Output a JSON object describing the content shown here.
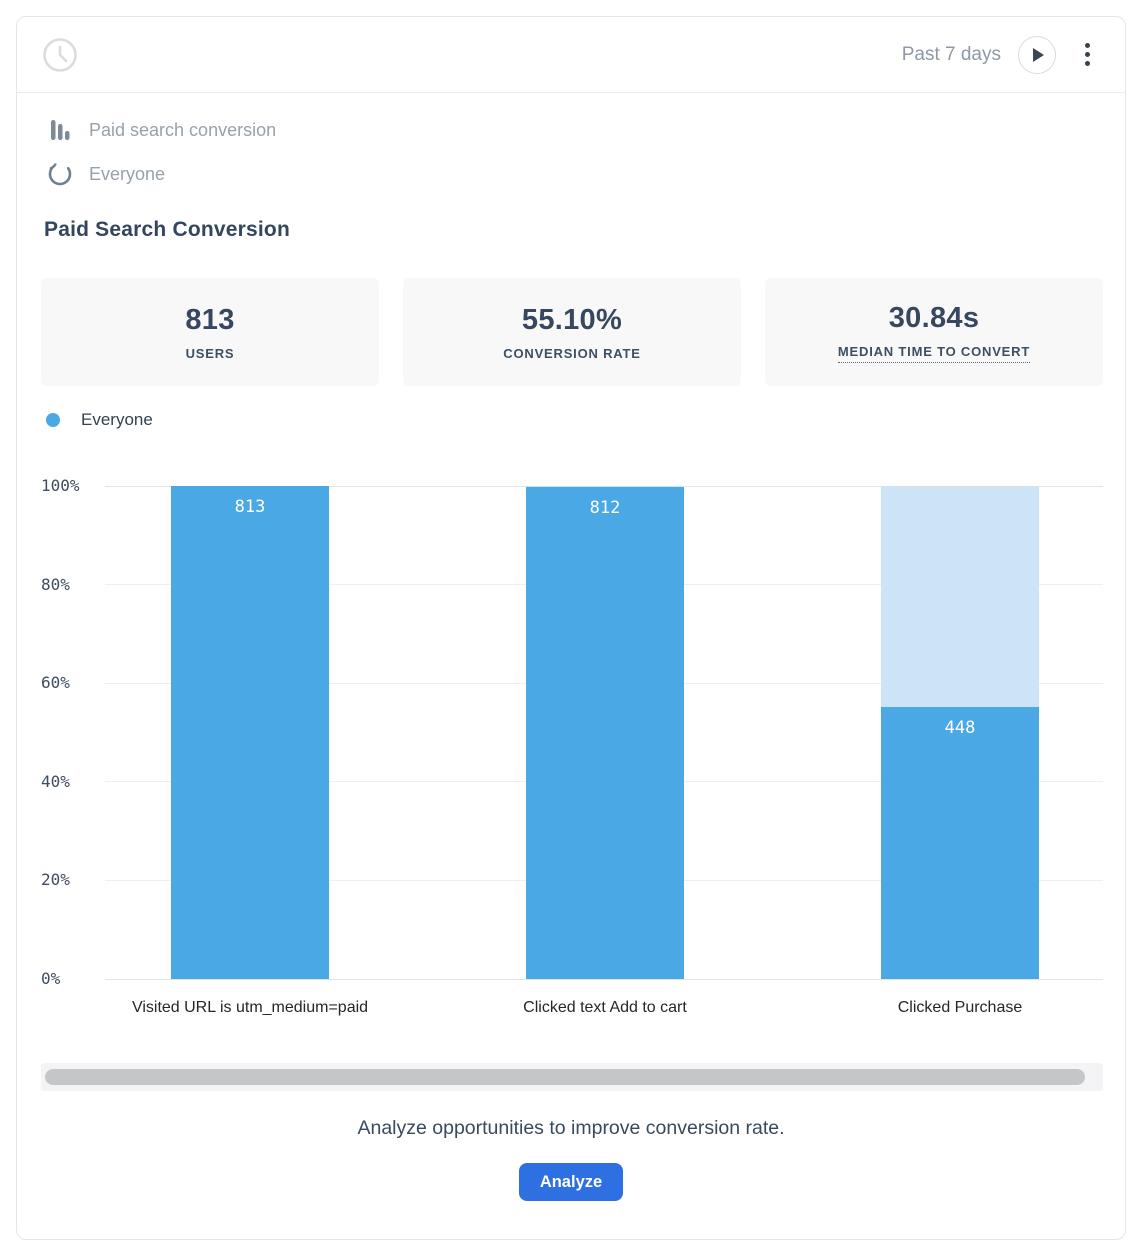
{
  "header": {
    "time_range": "Past 7 days",
    "icons": [
      "clock-icon",
      "play-icon",
      "kebab-menu-icon"
    ]
  },
  "meta": {
    "chart_name": "Paid search conversion",
    "chart_type_icon": "bar-chart-icon",
    "segment_name": "Everyone",
    "segment_icon": "segment-circle-icon"
  },
  "title": "Paid Search Conversion",
  "stats": [
    {
      "value": "813",
      "label": "USERS",
      "underlined": false
    },
    {
      "value": "55.10%",
      "label": "CONVERSION RATE",
      "underlined": false
    },
    {
      "value": "30.84s",
      "label": "MEDIAN TIME TO CONVERT",
      "underlined": true
    }
  ],
  "legend": {
    "label": "Everyone"
  },
  "chart_data": {
    "type": "bar",
    "subtype": "funnel",
    "title": "Paid Search Conversion",
    "categories": [
      "Visited URL is utm_medium=paid",
      "Clicked text Add to cart",
      "Clicked Purchase"
    ],
    "series": [
      {
        "name": "Everyone",
        "values": [
          813,
          812,
          448
        ]
      }
    ],
    "value_labels": [
      "813",
      "812",
      "448"
    ],
    "conversion_pct": [
      100.0,
      99.88,
      55.1
    ],
    "ylabel": "",
    "xlabel": "",
    "ylim": [
      0,
      100
    ],
    "yticks": [
      "0%",
      "20%",
      "40%",
      "60%",
      "80%",
      "100%"
    ],
    "grid": true,
    "legend_position": "top-left",
    "bar_color": "#4aa9e4",
    "remainder_color": "#cce4f6"
  },
  "colors": {
    "accent_blue": "#4aa9e4",
    "remainder_blue": "#cce4f6",
    "button_blue": "#2e6fe2",
    "dark_text": "#36475f",
    "muted_text": "#97a1ac"
  },
  "footer": {
    "message": "Analyze opportunities to improve conversion rate.",
    "button_label": "Analyze"
  }
}
